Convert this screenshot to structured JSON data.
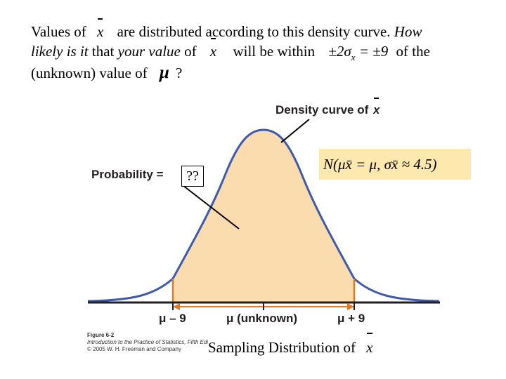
{
  "intro": {
    "line1_a": "Values of",
    "line1_b": "are distributed according to this density curve.",
    "line1_c": "How",
    "line2_a": "likely is it",
    "line2_b": "that",
    "line2_c": "your value",
    "line2_d": "of",
    "line2_e": "will be within",
    "line2_f": "±2σ",
    "line2_g": "= ±9",
    "line2_h": "of the",
    "line3_a": "(unknown) value of",
    "line3_b": "μ",
    "line3_c": "?"
  },
  "diagram": {
    "density_title": "Density curve of",
    "probability_label": "Probability =",
    "probability_value": "??",
    "model_formula": "N(μx̄ = μ, σx̄ ≈ 4.5)",
    "left_tick": "μ – 9",
    "center_tick": "μ (unknown)",
    "right_tick": "μ + 9",
    "x_symbol": "x",
    "colors": {
      "fill": "#fbdcae",
      "curve": "#3f5aa8",
      "bracket": "#e07a28",
      "formula_bg": "#fde9ad"
    }
  },
  "figure_caption": {
    "line1": "Figure 6-2",
    "line2": "Introduction to the Practice of Statistics, Fifth Edition",
    "line3": "© 2005 W. H. Freeman and Company"
  },
  "footer": {
    "title": "Sampling Distribution of",
    "symbol": "x"
  }
}
